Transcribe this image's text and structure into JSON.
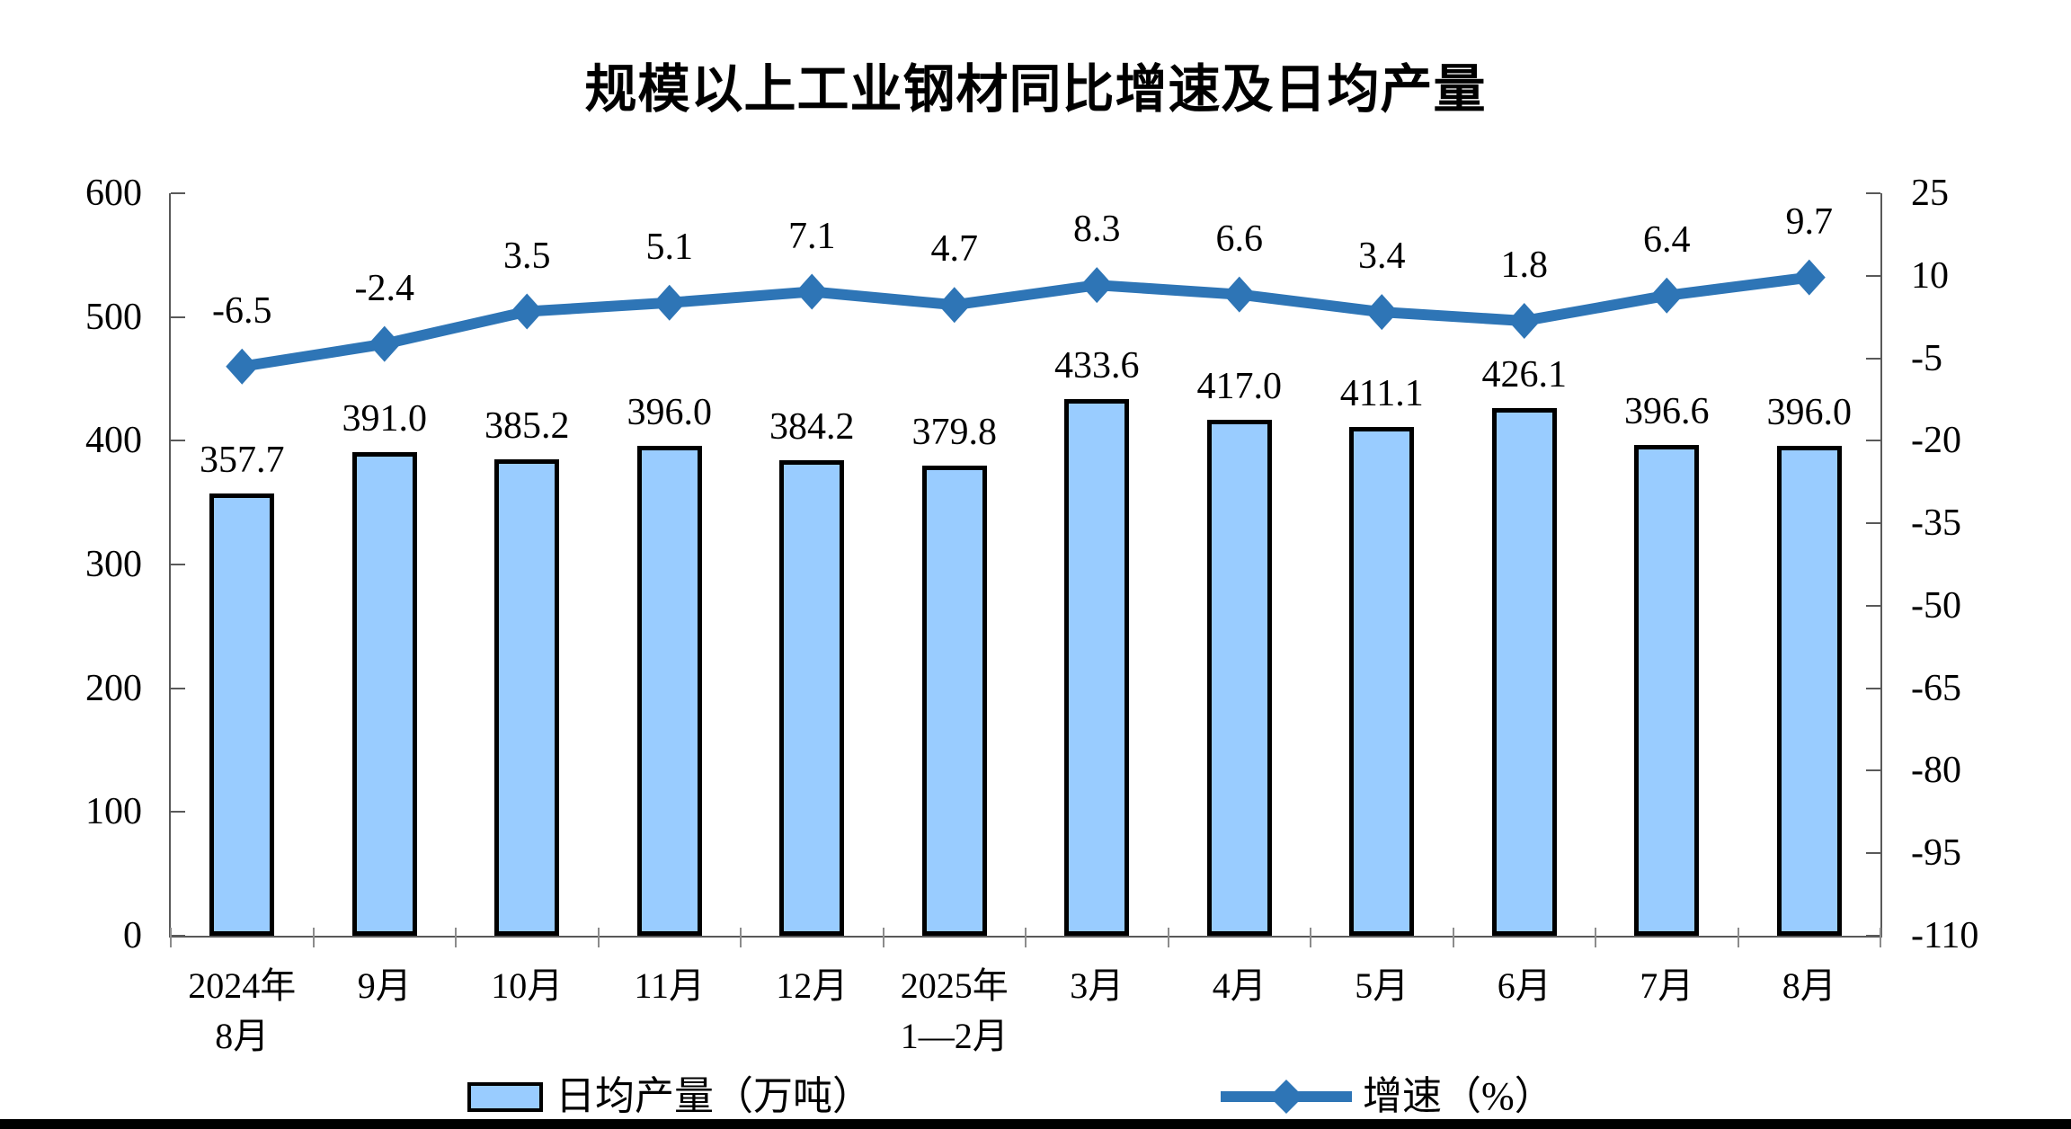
{
  "title": "规模以上工业钢材同比增速及日均产量",
  "legend": {
    "bars": "日均产量（万吨）",
    "line": "增速（%）"
  },
  "colors": {
    "bar_fill": "#99CCFF",
    "bar_border": "#000000",
    "line": "#2E75B6",
    "axis": "#595959"
  },
  "chart_data": {
    "type": "bar",
    "subtype": "bar+line dual axis",
    "title": "规模以上工业钢材同比增速及日均产量",
    "categories": [
      [
        "2024年",
        "8月"
      ],
      [
        "9月"
      ],
      [
        "10月"
      ],
      [
        "11月"
      ],
      [
        "12月"
      ],
      [
        "2025年",
        "1—2月"
      ],
      [
        "3月"
      ],
      [
        "4月"
      ],
      [
        "5月"
      ],
      [
        "6月"
      ],
      [
        "7月"
      ],
      [
        "8月"
      ]
    ],
    "series": [
      {
        "name": "日均产量（万吨）",
        "type": "bar",
        "axis": "left",
        "values": [
          357.7,
          391.0,
          385.2,
          396.0,
          384.2,
          379.8,
          433.6,
          417.0,
          411.1,
          426.1,
          396.6,
          396.0
        ],
        "labels": [
          "357.7",
          "391.0",
          "385.2",
          "396.0",
          "384.2",
          "379.8",
          "433.6",
          "417.0",
          "411.1",
          "426.1",
          "396.6",
          "396.0"
        ]
      },
      {
        "name": "增速（%）",
        "type": "line",
        "axis": "right",
        "values": [
          -6.5,
          -2.4,
          3.5,
          5.1,
          7.1,
          4.7,
          8.3,
          6.6,
          3.4,
          1.8,
          6.4,
          9.7
        ],
        "labels": [
          "-6.5",
          "-2.4",
          "3.5",
          "5.1",
          "7.1",
          "4.7",
          "8.3",
          "6.6",
          "3.4",
          "1.8",
          "6.4",
          "9.7"
        ]
      }
    ],
    "left_axis": {
      "min": 0,
      "max": 600,
      "ticks": [
        "600",
        "500",
        "400",
        "300",
        "200",
        "100",
        "0"
      ]
    },
    "right_axis": {
      "min": -110,
      "max": 25,
      "ticks": [
        "25",
        "10",
        "-5",
        "-20",
        "-35",
        "-50",
        "-65",
        "-80",
        "-95",
        "-110"
      ]
    },
    "grid": "off",
    "legend_position": "bottom"
  }
}
